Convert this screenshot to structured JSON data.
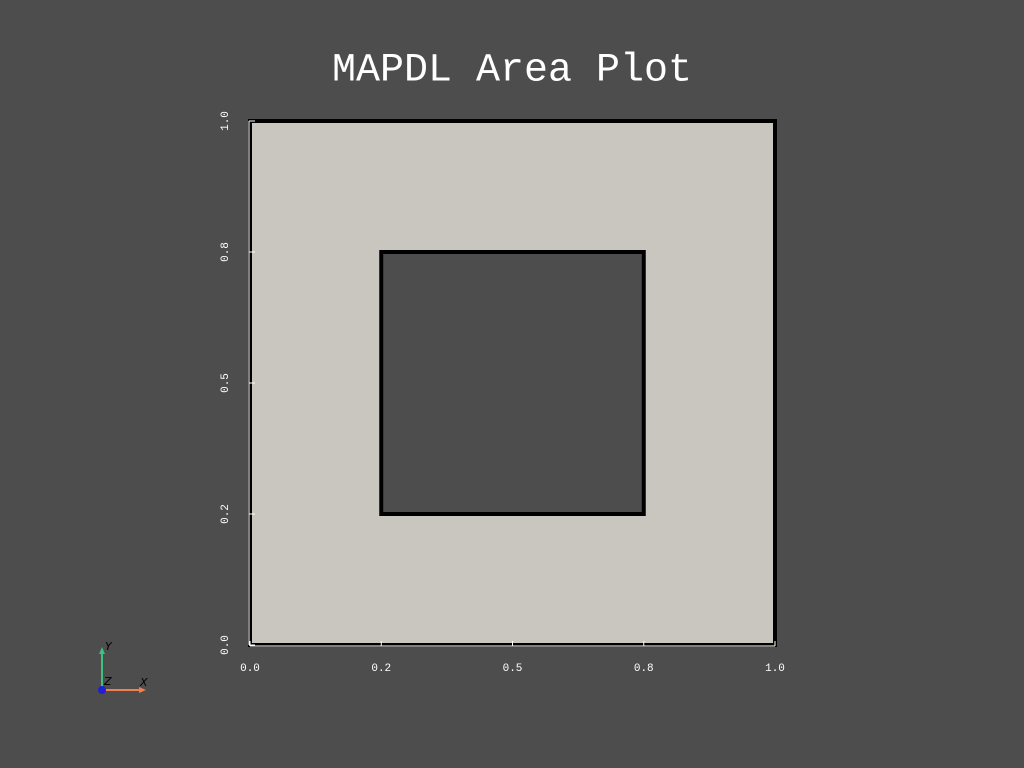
{
  "chart_data": {
    "type": "polygons",
    "title": "MAPDL Area Plot",
    "regions": [
      {
        "x": [
          0,
          1,
          1,
          0
        ],
        "y": [
          0,
          0,
          1,
          1
        ],
        "color": "#c9c6bf"
      },
      {
        "x": [
          0.25,
          0.75,
          0.75,
          0.25
        ],
        "y": [
          0.25,
          0.25,
          0.75,
          0.75
        ],
        "color": "#4d4d4d"
      }
    ],
    "edge_color": "#000000",
    "xlim": [
      0,
      1
    ],
    "ylim": [
      0,
      1
    ],
    "xticks": [
      {
        "value": 0,
        "label": "0.0"
      },
      {
        "value": 0.25,
        "label": "0.2"
      },
      {
        "value": 0.5,
        "label": "0.5"
      },
      {
        "value": 0.75,
        "label": "0.8"
      },
      {
        "value": 1,
        "label": "1.0"
      }
    ],
    "yticks": [
      {
        "value": 0,
        "label": "0.0"
      },
      {
        "value": 0.25,
        "label": "0.2"
      },
      {
        "value": 0.5,
        "label": "0.5"
      },
      {
        "value": 0.75,
        "label": "0.8"
      },
      {
        "value": 1,
        "label": "1.0"
      }
    ]
  },
  "orientation_widget": {
    "x": "X",
    "y": "Y",
    "z": "Z"
  }
}
